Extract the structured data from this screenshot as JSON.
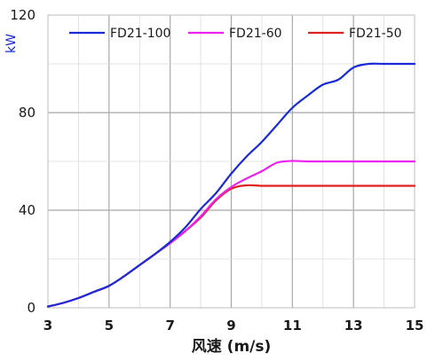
{
  "chart_data": {
    "type": "line",
    "title": "",
    "xlabel": "风速 (m/s)",
    "ylabel": "kW",
    "xlim": [
      3,
      15
    ],
    "ylim": [
      0,
      120
    ],
    "xticks": [
      3,
      5,
      7,
      9,
      11,
      13,
      15
    ],
    "yticks": [
      0,
      40,
      80,
      120
    ],
    "grid": true,
    "legend_position": "top",
    "series": [
      {
        "name": "FD21-100",
        "color": "#1a2ad6",
        "x": [
          3,
          3.5,
          4,
          4.5,
          5,
          5.5,
          6,
          6.5,
          7,
          7.5,
          8,
          8.5,
          9,
          9.5,
          10,
          10.5,
          11,
          11.5,
          12,
          12.5,
          13,
          13.5,
          14,
          15
        ],
        "y": [
          0.5,
          2,
          4,
          6.5,
          9,
          13,
          17.5,
          22,
          27,
          33,
          40.5,
          47,
          55,
          62,
          68,
          75,
          82,
          87,
          91.5,
          93.5,
          98.5,
          100,
          100,
          100
        ]
      },
      {
        "name": "FD21-60",
        "color": "#ee20ee",
        "x": [
          3,
          3.5,
          4,
          4.5,
          5,
          5.5,
          6,
          6.5,
          7,
          7.5,
          8,
          8.5,
          9,
          9.5,
          10,
          10.5,
          11,
          11.5,
          12,
          13,
          14,
          15
        ],
        "y": [
          0.5,
          2,
          4,
          6.5,
          9,
          13,
          17.5,
          22,
          26.5,
          31.5,
          37.5,
          44.5,
          49.5,
          53,
          56,
          59.5,
          60.2,
          60,
          60,
          60,
          60,
          60
        ]
      },
      {
        "name": "FD21-50",
        "color": "#e02020",
        "x": [
          3,
          3.5,
          4,
          4.5,
          5,
          5.5,
          6,
          6.5,
          7,
          7.5,
          8,
          8.5,
          9,
          9.5,
          10,
          10.5,
          11,
          12,
          13,
          14,
          15
        ],
        "y": [
          0.5,
          2,
          4,
          6.5,
          9,
          13,
          17.5,
          22,
          26.5,
          31.5,
          37,
          44,
          48.8,
          50.2,
          50,
          50,
          50,
          50,
          50,
          50,
          50
        ]
      }
    ]
  }
}
